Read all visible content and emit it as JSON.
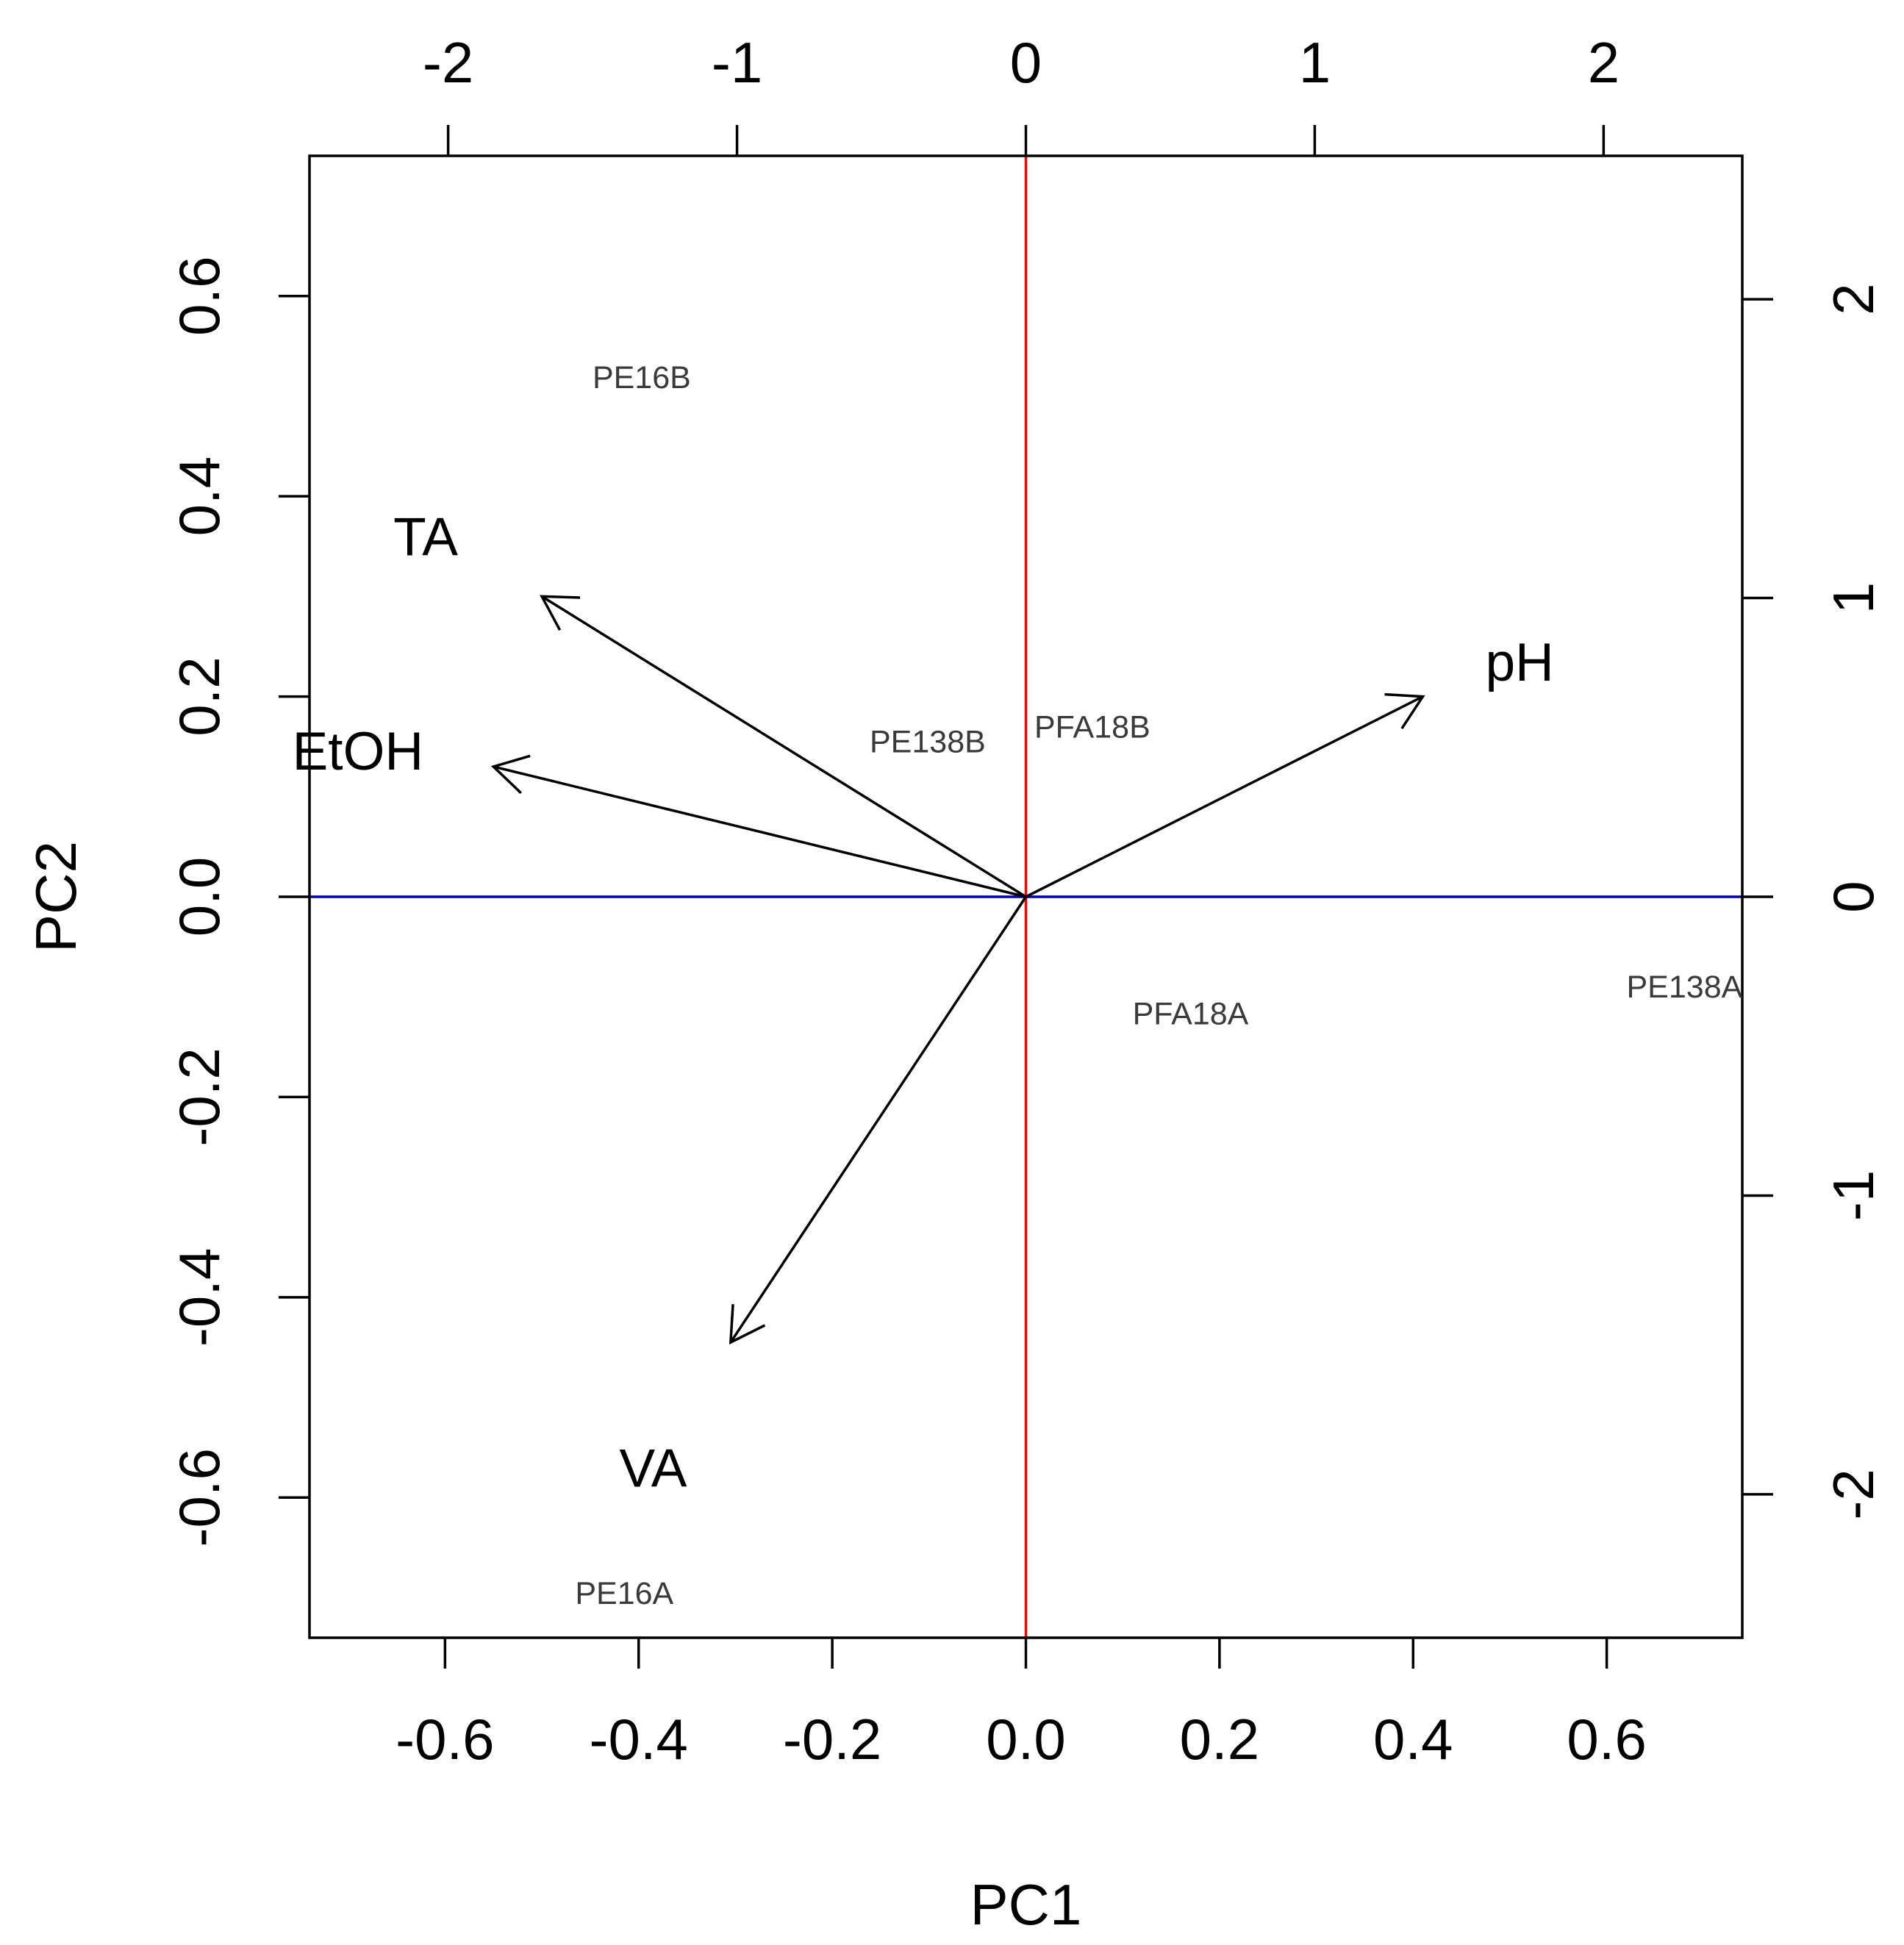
{
  "chart_data": {
    "type": "scatter",
    "subtype": "pca-biplot",
    "title": "",
    "xlabel": "PC1",
    "ylabel": "PC2",
    "bottom_axis": {
      "range": [
        -0.74,
        0.74
      ],
      "ticks": [
        "-0.6",
        "-0.4",
        "-0.2",
        "0.0",
        "0.2",
        "0.4",
        "0.6"
      ],
      "tick_values": [
        -0.6,
        -0.4,
        -0.2,
        0.0,
        0.2,
        0.4,
        0.6
      ]
    },
    "left_axis": {
      "range": [
        -0.74,
        0.74
      ],
      "ticks": [
        "-0.6",
        "-0.4",
        "-0.2",
        "0.0",
        "0.2",
        "0.4",
        "0.6"
      ],
      "tick_values": [
        -0.6,
        -0.4,
        -0.2,
        0.0,
        0.2,
        0.4,
        0.6
      ]
    },
    "top_axis": {
      "range": [
        -2.48,
        2.48
      ],
      "ticks": [
        "-2",
        "-1",
        "0",
        "1",
        "2"
      ],
      "tick_values": [
        -2,
        -1,
        0,
        1,
        2
      ]
    },
    "right_axis": {
      "range": [
        -2.48,
        2.48
      ],
      "ticks": [
        "-2",
        "-1",
        "0",
        "1",
        "2"
      ],
      "tick_values": [
        -2,
        -1,
        0,
        1,
        2
      ]
    },
    "reference_lines": [
      {
        "orientation": "vertical",
        "value": 0,
        "color": "#ff0000"
      },
      {
        "orientation": "horizontal",
        "value": 0,
        "color": "#0000b0"
      }
    ],
    "samples": [
      {
        "label": "PE16B",
        "x": -1.33,
        "y": 1.74
      },
      {
        "label": "PE138B",
        "x": -0.34,
        "y": 0.52
      },
      {
        "label": "PFA18B",
        "x": 0.23,
        "y": 0.57
      },
      {
        "label": "PFA18A",
        "x": 0.57,
        "y": -0.39
      },
      {
        "label": "PE138A",
        "x": 2.28,
        "y": -0.3
      },
      {
        "label": "PE16A",
        "x": -1.39,
        "y": -2.33
      }
    ],
    "variables": [
      {
        "label": "TA",
        "x": -0.5,
        "y": 0.3,
        "label_x": -0.62,
        "label_y": 0.36
      },
      {
        "label": "EtOH",
        "x": -0.55,
        "y": 0.13,
        "label_x": -0.69,
        "label_y": 0.146
      },
      {
        "label": "pH",
        "x": 0.41,
        "y": 0.2,
        "label_x": 0.51,
        "label_y": 0.235
      },
      {
        "label": "VA",
        "x": -0.305,
        "y": -0.445,
        "label_x": -0.385,
        "label_y": -0.57
      }
    ],
    "colors": {
      "arrows": "#000000",
      "frame": "#000000",
      "sample_labels": "#3a3a3a"
    }
  }
}
